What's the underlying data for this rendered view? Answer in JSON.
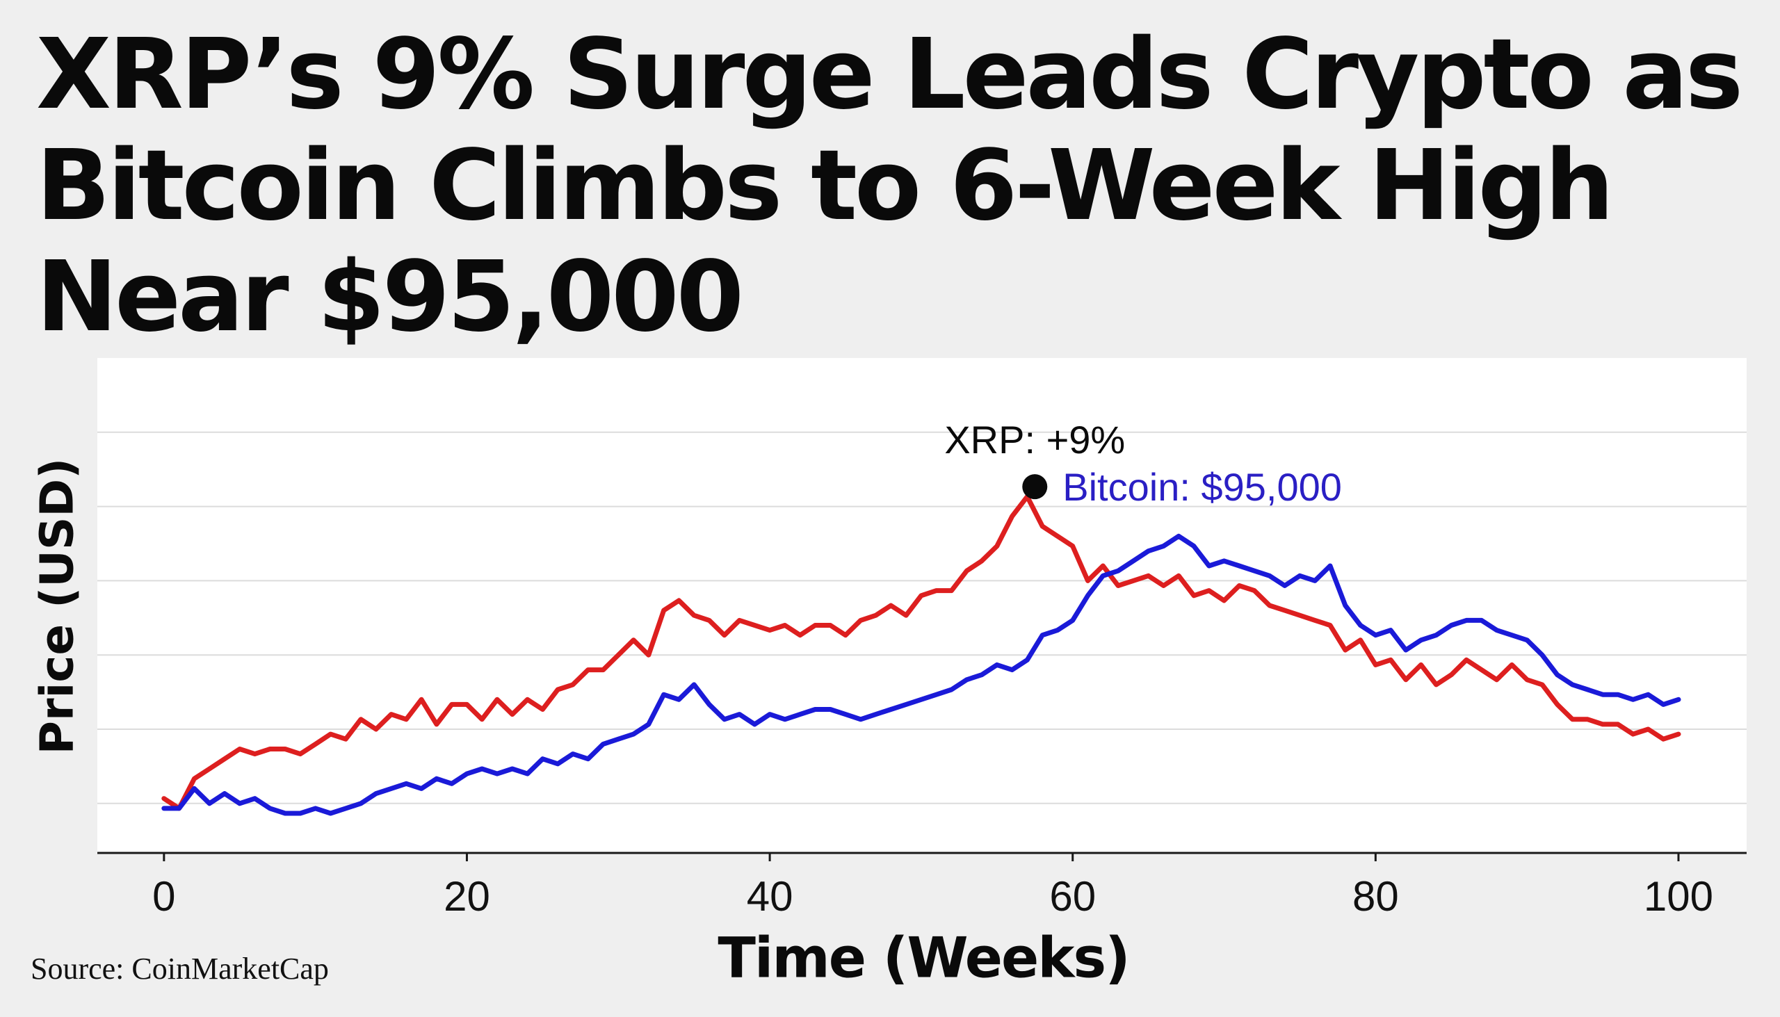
{
  "headline": {
    "line1": "XRP’s 9% Surge Leads Crypto as",
    "line2": "Bitcoin Climbs to 6-Week High",
    "line3": "Near $95,000"
  },
  "source": "Source: CoinMarketCap",
  "chart_data": {
    "type": "line",
    "title": "",
    "xlabel": "Time (Weeks)",
    "ylabel": "Price (USD)",
    "xlim": [
      -4.4,
      104.5
    ],
    "ylim": [
      0,
      100
    ],
    "xticks": [
      0,
      20,
      40,
      60,
      80,
      100
    ],
    "grid": true,
    "series": [
      {
        "color": "#dd1f1f",
        "x": [
          0,
          1,
          2,
          3,
          4,
          5,
          6,
          7,
          8,
          9,
          10,
          11,
          12,
          13,
          14,
          15,
          16,
          17,
          18,
          19,
          20,
          21,
          22,
          23,
          24,
          25,
          26,
          27,
          28,
          29,
          30,
          31,
          32,
          33,
          34,
          35,
          36,
          37,
          38,
          39,
          40,
          41,
          42,
          43,
          44,
          45,
          46,
          47,
          48,
          49,
          50,
          51,
          52,
          53,
          54,
          55,
          56,
          57,
          58,
          59,
          60,
          61,
          62,
          63,
          64,
          65,
          66,
          67,
          68,
          69,
          70,
          71,
          72,
          73,
          74,
          75,
          76,
          77,
          78,
          79,
          80,
          81,
          82,
          83,
          84,
          85,
          86,
          87,
          88,
          89,
          90,
          91,
          92,
          93,
          94,
          95,
          96,
          97,
          98,
          99,
          100
        ],
        "values": [
          11,
          9,
          15,
          17,
          19,
          21,
          20,
          21,
          21,
          20,
          22,
          24,
          23,
          27,
          25,
          28,
          27,
          31,
          26,
          30,
          30,
          27,
          31,
          28,
          31,
          29,
          33,
          34,
          37,
          37,
          40,
          43,
          40,
          49,
          51,
          48,
          47,
          44,
          47,
          46,
          45,
          46,
          44,
          46,
          46,
          44,
          47,
          48,
          50,
          48,
          52,
          53,
          53,
          57,
          59,
          62,
          68,
          72,
          66,
          64,
          62,
          55,
          58,
          54,
          55,
          56,
          54,
          56,
          52,
          53,
          51,
          54,
          53,
          50,
          49,
          48,
          47,
          46,
          41,
          43,
          38,
          39,
          35,
          38,
          34,
          36,
          39,
          37,
          35,
          38,
          35,
          34,
          30,
          27,
          27,
          26,
          26,
          24,
          25,
          23,
          24
        ]
      },
      {
        "color": "#1a1ad8",
        "x": [
          0,
          1,
          2,
          3,
          4,
          5,
          6,
          7,
          8,
          9,
          10,
          11,
          12,
          13,
          14,
          15,
          16,
          17,
          18,
          19,
          20,
          21,
          22,
          23,
          24,
          25,
          26,
          27,
          28,
          29,
          30,
          31,
          32,
          33,
          34,
          35,
          36,
          37,
          38,
          39,
          40,
          41,
          42,
          43,
          44,
          45,
          46,
          47,
          48,
          49,
          50,
          51,
          52,
          53,
          54,
          55,
          56,
          57,
          58,
          59,
          60,
          61,
          62,
          63,
          64,
          65,
          66,
          67,
          68,
          69,
          70,
          71,
          72,
          73,
          74,
          75,
          76,
          77,
          78,
          79,
          80,
          81,
          82,
          83,
          84,
          85,
          86,
          87,
          88,
          89,
          90,
          91,
          92,
          93,
          94,
          95,
          96,
          97,
          98,
          99,
          100
        ],
        "values": [
          9,
          9,
          13,
          10,
          12,
          10,
          11,
          9,
          8,
          8,
          9,
          8,
          9,
          10,
          12,
          13,
          14,
          13,
          15,
          14,
          16,
          17,
          16,
          17,
          16,
          19,
          18,
          20,
          19,
          22,
          23,
          24,
          26,
          32,
          31,
          34,
          30,
          27,
          28,
          26,
          28,
          27,
          28,
          29,
          29,
          28,
          27,
          28,
          29,
          30,
          31,
          32,
          33,
          35,
          36,
          38,
          37,
          39,
          44,
          45,
          47,
          52,
          56,
          57,
          59,
          61,
          62,
          64,
          62,
          58,
          59,
          58,
          57,
          56,
          54,
          56,
          55,
          58,
          50,
          46,
          44,
          45,
          41,
          43,
          44,
          46,
          47,
          47,
          45,
          44,
          43,
          40,
          36,
          34,
          33,
          32,
          32,
          31,
          32,
          30,
          31
        ]
      }
    ],
    "annotations": [
      {
        "text": "XRP: +9%",
        "color": "#0a0a0a"
      },
      {
        "text": "Bitcoin: $95,000",
        "color": "#2a1fc4"
      }
    ],
    "marker": {
      "x": 57.5,
      "y": 74,
      "color": "#0a0a0a"
    }
  }
}
